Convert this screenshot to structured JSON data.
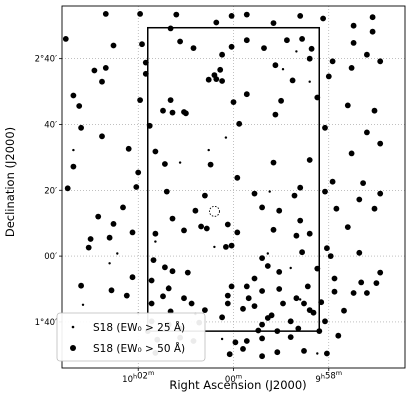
{
  "chart_data": {
    "type": "scatter",
    "xlabel": "Right Ascension (J2000)",
    "ylabel": "Declination (J2000)",
    "x_unit": "arcmin offset in RA",
    "y_unit": "arcmin of Dec",
    "xlim": [
      9,
      -9
    ],
    "ylim": [
      93,
      148
    ],
    "x_ticks": [
      {
        "value": 5,
        "label": "10$^h$02$^m$"
      },
      {
        "value": 0,
        "label": "00$^m$"
      },
      {
        "value": -5,
        "label": "9$^h$58$^m$"
      }
    ],
    "x_tick_labels_text": [
      "10h02m",
      "00m",
      "9h58m"
    ],
    "y_ticks": [
      {
        "value": 100,
        "label": "1°40′"
      },
      {
        "value": 110,
        "label": "00′"
      },
      {
        "value": 120,
        "label": "20′"
      },
      {
        "value": 130,
        "label": "40′"
      },
      {
        "value": 140,
        "label": "2°40′"
      }
    ],
    "y_tick_labels_text": [
      "1°40′",
      "00′",
      "20′",
      "40′",
      "2°40′"
    ],
    "grid": true,
    "grid_style": "dotted",
    "legend_position": "bottom-left",
    "legend": [
      {
        "label": "S18 (EW₀ > 25 Å)",
        "marker": "small-dot"
      },
      {
        "label": "S18 (EW₀ > 50 Å)",
        "marker": "large-dot"
      }
    ],
    "field_box": {
      "x": [
        4.5,
        -4.5
      ],
      "y": [
        98.6,
        144.7
      ]
    },
    "center_marker": {
      "x": 1.0,
      "y": 116.8,
      "style": "dotted-circle"
    },
    "series": [
      {
        "name": "S18 (EW₀ > 25 Å)",
        "marker": "small",
        "points": [
          [
            1.3,
            126.1
          ],
          [
            2.8,
            124.2
          ],
          [
            8.4,
            126.1
          ],
          [
            6.1,
            110.4
          ],
          [
            7.9,
            102.6
          ],
          [
            3.4,
            105.4
          ],
          [
            -3.3,
            141.1
          ],
          [
            5.0,
            101.3
          ],
          [
            4.1,
            112.2
          ],
          [
            -4.0,
            136.5
          ],
          [
            0.4,
            128.0
          ],
          [
            -3.5,
            103.4
          ],
          [
            -2.6,
            138.4
          ],
          [
            6.5,
            108.9
          ],
          [
            2.0,
            101.2
          ],
          [
            -1.8,
            110.4
          ],
          [
            -4.4,
            95.2
          ],
          [
            -2.0,
            101.1
          ],
          [
            0.6,
            97.4
          ],
          [
            1.0,
            111.4
          ],
          [
            -1.9,
            119.8
          ],
          [
            -3.0,
            108.2
          ]
        ]
      },
      {
        "name": "S18 (EW₀ > 50 Å)",
        "marker": "large",
        "points": [
          [
            6.7,
            146.8
          ],
          [
            4.9,
            146.8
          ],
          [
            3.0,
            146.7
          ],
          [
            0.1,
            146.5
          ],
          [
            -0.7,
            146.7
          ],
          [
            -3.5,
            146.5
          ],
          [
            -4.7,
            146.1
          ],
          [
            -6.3,
            145.0
          ],
          [
            -7.3,
            146.3
          ],
          [
            3.3,
            144.6
          ],
          [
            0.9,
            145.5
          ],
          [
            -2.1,
            145.4
          ],
          [
            8.8,
            143.0
          ],
          [
            6.3,
            142.0
          ],
          [
            4.8,
            142.2
          ],
          [
            2.8,
            142.6
          ],
          [
            2.1,
            141.6
          ],
          [
            -0.7,
            142.8
          ],
          [
            -2.8,
            142.8
          ],
          [
            -3.6,
            143.0
          ],
          [
            -4.1,
            141.5
          ],
          [
            -6.3,
            142.4
          ],
          [
            -7.3,
            144.1
          ],
          [
            6.7,
            138.6
          ],
          [
            4.6,
            139.4
          ],
          [
            0.6,
            140.6
          ],
          [
            0.1,
            141.8
          ],
          [
            -1.6,
            141.6
          ],
          [
            -4.0,
            140.0
          ],
          [
            -5.2,
            139.6
          ],
          [
            -7.0,
            140.6
          ],
          [
            7.3,
            138.2
          ],
          [
            6.9,
            136.5
          ],
          [
            4.6,
            137.7
          ],
          [
            1.0,
            137.5
          ],
          [
            0.7,
            138.3
          ],
          [
            -2.2,
            139.0
          ],
          [
            -3.1,
            136.7
          ],
          [
            -5.0,
            137.3
          ],
          [
            -6.2,
            138.6
          ],
          [
            -7.7,
            139.6
          ],
          [
            0.9,
            136.9
          ],
          [
            0.6,
            136.6
          ],
          [
            1.3,
            136.8
          ],
          [
            8.4,
            134.4
          ],
          [
            8.1,
            132.8
          ],
          [
            4.9,
            133.7
          ],
          [
            3.3,
            133.7
          ],
          [
            0.0,
            133.4
          ],
          [
            -0.7,
            134.6
          ],
          [
            -2.5,
            133.6
          ],
          [
            -4.4,
            134.1
          ],
          [
            -6.0,
            132.9
          ],
          [
            -7.4,
            132.1
          ],
          [
            3.7,
            132.1
          ],
          [
            3.2,
            131.8
          ],
          [
            2.5,
            131.7
          ],
          [
            2.6,
            131.9
          ],
          [
            4.4,
            129.8
          ],
          [
            -0.3,
            130.1
          ],
          [
            -2.2,
            131.5
          ],
          [
            -4.8,
            129.5
          ],
          [
            -7.0,
            128.8
          ],
          [
            4.1,
            125.9
          ],
          [
            6.9,
            128.2
          ],
          [
            5.5,
            126.3
          ],
          [
            8.0,
            129.5
          ],
          [
            5.0,
            122.7
          ],
          [
            8.4,
            123.6
          ],
          [
            3.6,
            124.0
          ],
          [
            1.2,
            123.9
          ],
          [
            -2.1,
            124.2
          ],
          [
            -4.0,
            124.6
          ],
          [
            -6.2,
            125.6
          ],
          [
            -7.7,
            127.1
          ],
          [
            -5.2,
            121.3
          ],
          [
            -0.2,
            121.9
          ],
          [
            -3.5,
            120.4
          ],
          [
            -6.8,
            121.1
          ],
          [
            -7.7,
            119.5
          ],
          [
            8.7,
            120.3
          ],
          [
            5.1,
            120.5
          ],
          [
            3.5,
            119.8
          ],
          [
            1.5,
            119.2
          ],
          [
            -1.1,
            119.5
          ],
          [
            -3.2,
            119.2
          ],
          [
            -4.8,
            119.8
          ],
          [
            -6.6,
            118.6
          ],
          [
            5.8,
            117.4
          ],
          [
            2.0,
            116.9
          ],
          [
            -1.5,
            117.4
          ],
          [
            -2.4,
            116.9
          ],
          [
            -3.5,
            115.4
          ],
          [
            -5.4,
            117.2
          ],
          [
            -7.4,
            117.2
          ],
          [
            7.1,
            116.0
          ],
          [
            3.2,
            115.7
          ],
          [
            0.3,
            114.8
          ],
          [
            -2.1,
            114.0
          ],
          [
            -3.3,
            113.1
          ],
          [
            -4.0,
            113.4
          ],
          [
            -6.0,
            114.4
          ],
          [
            6.3,
            114.9
          ],
          [
            1.4,
            114.2
          ],
          [
            4.1,
            113.4
          ],
          [
            2.6,
            113.9
          ],
          [
            -0.2,
            113.6
          ],
          [
            0.1,
            111.6
          ],
          [
            7.5,
            112.6
          ],
          [
            5.3,
            113.6
          ],
          [
            7.6,
            111.3
          ],
          [
            6.5,
            112.8
          ],
          [
            1.7,
            114.5
          ],
          [
            0.4,
            111.4
          ],
          [
            -4.9,
            111.2
          ],
          [
            -6.6,
            110.5
          ],
          [
            4.2,
            109.4
          ],
          [
            -1.5,
            109.7
          ],
          [
            -3.6,
            110.6
          ],
          [
            -5.1,
            110.0
          ],
          [
            3.6,
            108.3
          ],
          [
            3.2,
            107.7
          ],
          [
            2.4,
            107.5
          ],
          [
            -1.8,
            108.5
          ],
          [
            -4.4,
            108.1
          ],
          [
            -7.7,
            107.5
          ],
          [
            5.3,
            106.8
          ],
          [
            4.3,
            106.3
          ],
          [
            -1.1,
            106.6
          ],
          [
            -2.4,
            107.6
          ],
          [
            -5.3,
            106.6
          ],
          [
            -6.7,
            106.0
          ],
          [
            -7.5,
            105.9
          ],
          [
            8.0,
            105.5
          ],
          [
            3.4,
            105.1
          ],
          [
            0.1,
            105.4
          ],
          [
            -0.7,
            105.4
          ],
          [
            -1.5,
            104.7
          ],
          [
            -2.4,
            105.0
          ],
          [
            -3.9,
            105.4
          ],
          [
            -5.3,
            104.6
          ],
          [
            -7.0,
            104.4
          ],
          [
            6.4,
            104.8
          ],
          [
            5.6,
            104.0
          ],
          [
            3.7,
            103.9
          ],
          [
            2.6,
            103.6
          ],
          [
            0.3,
            104.0
          ],
          [
            -0.8,
            103.6
          ],
          [
            -3.3,
            103.6
          ],
          [
            -4.6,
            103.0
          ],
          [
            -6.3,
            104.4
          ],
          [
            4.3,
            102.8
          ],
          [
            2.2,
            102.8
          ],
          [
            0.3,
            102.8
          ],
          [
            -1.1,
            102.4
          ],
          [
            -2.6,
            102.8
          ],
          [
            -3.7,
            102.8
          ],
          [
            -4.2,
            101.4
          ],
          [
            3.3,
            101.6
          ],
          [
            1.5,
            101.8
          ],
          [
            -0.5,
            102.0
          ],
          [
            -2.0,
            101.0
          ],
          [
            -4.0,
            101.8
          ],
          [
            -5.8,
            101.7
          ],
          [
            4.3,
            100.1
          ],
          [
            3.4,
            99.6
          ],
          [
            1.8,
            99.9
          ],
          [
            0.6,
            100.7
          ],
          [
            -1.8,
            100.6
          ],
          [
            -3.0,
            100.1
          ],
          [
            -4.8,
            100.1
          ],
          [
            4.5,
            98.6
          ],
          [
            2.8,
            99.0
          ],
          [
            -1.3,
            98.7
          ],
          [
            -2.3,
            98.6
          ],
          [
            -3.4,
            99.0
          ],
          [
            -4.5,
            98.6
          ],
          [
            4.0,
            97.3
          ],
          [
            2.8,
            97.6
          ],
          [
            2.1,
            97.1
          ],
          [
            -0.7,
            97.1
          ],
          [
            -1.5,
            97.5
          ],
          [
            -3.7,
            95.6
          ],
          [
            -5.5,
            97.9
          ],
          [
            4.1,
            95.3
          ],
          [
            0.2,
            95.1
          ],
          [
            -0.5,
            95.9
          ],
          [
            -1.5,
            94.8
          ],
          [
            -2.3,
            95.4
          ],
          [
            -4.9,
            95.2
          ],
          [
            -0.1,
            96.9
          ],
          [
            -1.5,
            99.6
          ],
          [
            -3.0,
            97.7
          ]
        ]
      }
    ]
  }
}
